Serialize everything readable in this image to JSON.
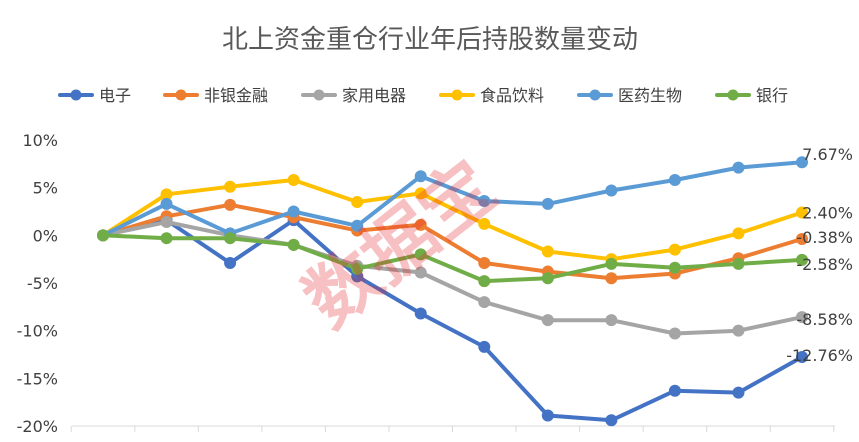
{
  "chart_data": {
    "type": "line",
    "title": "北上资金重仓行业年后持股数量变动",
    "xlabel": "",
    "ylabel": "",
    "ylim": [
      -20,
      10
    ],
    "yticks": [
      10,
      5,
      0,
      -5,
      -10,
      -15,
      -20
    ],
    "ytick_labels": [
      "10%",
      "5%",
      "0%",
      "-5%",
      "-10%",
      "-15%",
      "-20%"
    ],
    "x": [
      0,
      1,
      2,
      3,
      4,
      5,
      6,
      7,
      8,
      9,
      10,
      11
    ],
    "grid": false,
    "legend_position": "top",
    "series": [
      {
        "name": "电子",
        "color": "#4472c4",
        "values": [
          0,
          1.6,
          -2.9,
          1.6,
          -4.3,
          -8.2,
          -11.7,
          -18.9,
          -19.4,
          -16.3,
          -16.5,
          -12.76
        ],
        "end_label": "-12.76%"
      },
      {
        "name": "非银金融",
        "color": "#ed7d31",
        "values": [
          0,
          2.0,
          3.2,
          1.9,
          0.5,
          1.1,
          -2.9,
          -3.8,
          -4.5,
          -4.0,
          -2.4,
          -0.38
        ],
        "end_label": "-0.38%"
      },
      {
        "name": "家用电器",
        "color": "#a5a5a5",
        "values": [
          0,
          1.4,
          0,
          -1.0,
          -3.2,
          -3.9,
          -7.0,
          -8.9,
          -8.9,
          -10.3,
          -10.0,
          -8.58
        ],
        "end_label": "-8.58%"
      },
      {
        "name": "食品饮料",
        "color": "#ffc000",
        "values": [
          0,
          4.3,
          5.1,
          5.8,
          3.5,
          4.4,
          1.2,
          -1.7,
          -2.5,
          -1.5,
          0.2,
          2.4
        ],
        "end_label": "2.40%"
      },
      {
        "name": "医药生物",
        "color": "#5b9bd5",
        "values": [
          0,
          3.3,
          0.2,
          2.5,
          1.0,
          6.2,
          3.6,
          3.3,
          4.7,
          5.8,
          7.1,
          7.67
        ],
        "end_label": "7.67%"
      },
      {
        "name": "银行",
        "color": "#70ad47",
        "values": [
          0,
          -0.3,
          -0.3,
          -1.0,
          -3.5,
          -2.0,
          -4.8,
          -4.5,
          -3.0,
          -3.4,
          -3.0,
          -2.58
        ],
        "end_label": "-2.58%"
      }
    ],
    "watermark": "数据宝"
  }
}
